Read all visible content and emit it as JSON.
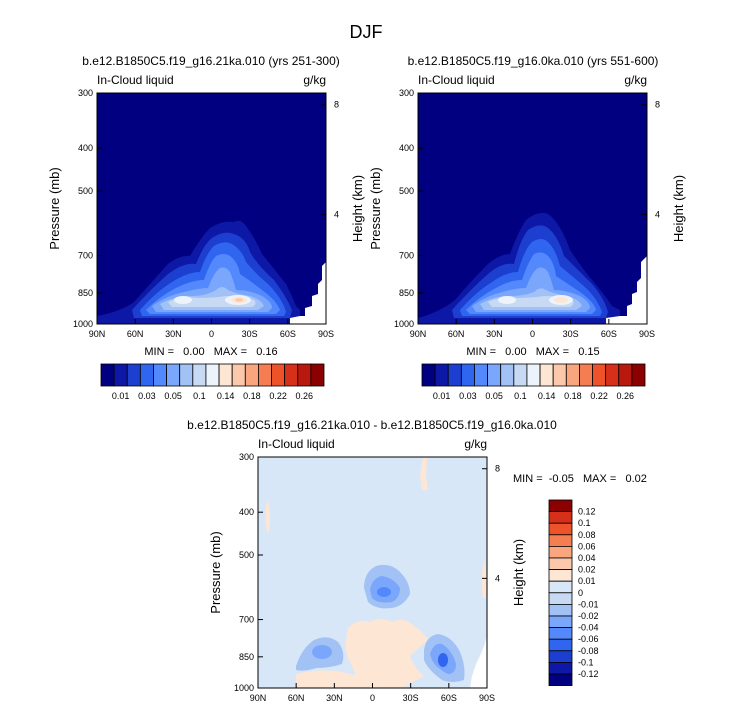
{
  "figure": {
    "title": "DJF"
  },
  "colors": {
    "cb_top": [
      "#000080",
      "#0e18a6",
      "#1c3fd0",
      "#3066ef",
      "#5389fc",
      "#7aa6fb",
      "#a2c2f6",
      "#c8daf3",
      "#edf3fb",
      "#fde6d3",
      "#fcc8ac",
      "#f9a67e",
      "#f57d52",
      "#ee5228",
      "#d7301a",
      "#b9180f",
      "#8b0000"
    ],
    "cb_diff": [
      "#000080",
      "#0e18a6",
      "#1c3fd0",
      "#3066ef",
      "#5389fc",
      "#7aa6fb",
      "#a2c2f6",
      "#c8daf3",
      "#d8e7f8",
      "#fde6d3",
      "#fcc8ac",
      "#f9a67e",
      "#f57d52",
      "#ee5228",
      "#d7301a",
      "#8b0000"
    ]
  },
  "chart_data": [
    {
      "type": "heatmap",
      "title": "b.e12.B1850C5.f19_g16.21ka.010 (yrs 251-300)",
      "left_label": "In-Cloud liquid",
      "units": "g/kg",
      "ylabel": "Pressure (mb)",
      "ylabel_right": "Height (km)",
      "x_ticks": [
        "90N",
        "60N",
        "30N",
        "0",
        "30S",
        "60S",
        "90S"
      ],
      "y_ticks": [
        "300",
        "400",
        "500",
        "700",
        "850",
        "1000"
      ],
      "y_ticks_right": [
        "8",
        "4"
      ],
      "stats": "MIN =   0.00   MAX =   0.16",
      "min": 0.0,
      "max": 0.16,
      "colorbar_labels": [
        "0.01",
        "0.03",
        "0.05",
        "0.1",
        "0.14",
        "0.18",
        "0.22",
        "0.26"
      ]
    },
    {
      "type": "heatmap",
      "title": "b.e12.B1850C5.f19_g16.0ka.010 (yrs 551-600)",
      "left_label": "In-Cloud liquid",
      "units": "g/kg",
      "ylabel": "Pressure (mb)",
      "ylabel_right": "Height (km)",
      "x_ticks": [
        "90N",
        "60N",
        "30N",
        "0",
        "30S",
        "60S",
        "90S"
      ],
      "y_ticks": [
        "300",
        "400",
        "500",
        "700",
        "850",
        "1000"
      ],
      "y_ticks_right": [
        "8",
        "4"
      ],
      "stats": "MIN =   0.00   MAX =   0.15",
      "min": 0.0,
      "max": 0.15,
      "colorbar_labels": [
        "0.01",
        "0.03",
        "0.05",
        "0.1",
        "0.14",
        "0.18",
        "0.22",
        "0.26"
      ]
    },
    {
      "type": "heatmap",
      "title": "b.e12.B1850C5.f19_g16.21ka.010 - b.e12.B1850C5.f19_g16.0ka.010",
      "left_label": "In-Cloud liquid",
      "units": "g/kg",
      "ylabel": "Pressure (mb)",
      "ylabel_right": "Height (km)",
      "x_ticks": [
        "90N",
        "60N",
        "30N",
        "0",
        "30S",
        "60S",
        "90S"
      ],
      "y_ticks": [
        "300",
        "400",
        "500",
        "700",
        "850",
        "1000"
      ],
      "y_ticks_right": [
        "8",
        "4"
      ],
      "stats": "MIN =  -0.05   MAX =   0.02",
      "min": -0.05,
      "max": 0.02,
      "colorbar_labels": [
        "0.12",
        "0.1",
        "0.08",
        "0.06",
        "0.04",
        "0.02",
        "0.01",
        "0",
        "-0.01",
        "-0.02",
        "-0.04",
        "-0.06",
        "-0.08",
        "-0.1",
        "-0.12"
      ]
    }
  ]
}
